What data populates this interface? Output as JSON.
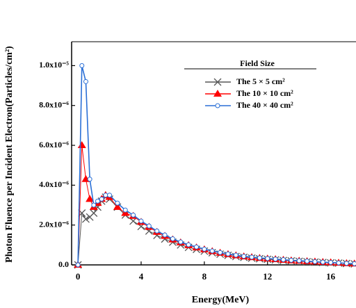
{
  "chart_data": {
    "type": "line",
    "y_label": "Photon Fluence per Incident Electron(Particles/cm²)",
    "x_label": "Energy(MeV)",
    "legend_title": "Field Size",
    "legend": "upper right",
    "x": [
      0,
      0.25,
      0.5,
      0.75,
      1,
      1.25,
      1.5,
      1.75,
      2,
      2.5,
      3,
      3.5,
      4,
      4.5,
      5,
      5.5,
      6,
      6.5,
      7,
      7.5,
      8,
      8.5,
      9,
      9.5,
      10,
      10.5,
      11,
      11.5,
      12,
      12.5,
      13,
      13.5,
      14,
      14.5,
      15,
      15.5,
      16,
      16.5,
      17,
      17.5
    ],
    "series": [
      {
        "name": "The 5 × 5 cm²",
        "color": "#555555",
        "marker": "x",
        "values": [
          0,
          2.6e-06,
          2.3e-06,
          2.4e-06,
          2.6e-06,
          2.9e-06,
          3.2e-06,
          3.4e-06,
          3.3e-06,
          2.9e-06,
          2.5e-06,
          2.2e-06,
          1.93e-06,
          1.7e-06,
          1.48e-06,
          1.3e-06,
          1.14e-06,
          1e-06,
          8.8e-07,
          7.8e-07,
          6.9e-07,
          6.1e-07,
          5.4e-07,
          4.8e-07,
          4.2e-07,
          3.8e-07,
          3.4e-07,
          3.1e-07,
          2.8e-07,
          2.5e-07,
          2.2e-07,
          2e-07,
          1.8e-07,
          1.6e-07,
          1.4e-07,
          1.2e-07,
          1e-07,
          9e-08,
          7e-08,
          5e-08
        ]
      },
      {
        "name": "The 10 × 10 cm²",
        "color": "#ff0000",
        "marker": "triangle",
        "values": [
          0,
          6e-06,
          4.3e-06,
          3.3e-06,
          2.9e-06,
          3.1e-06,
          3.3e-06,
          3.5e-06,
          3.4e-06,
          2.9e-06,
          2.6e-06,
          2.45e-06,
          2.15e-06,
          1.9e-06,
          1.65e-06,
          1.45e-06,
          1.27e-06,
          1.12e-06,
          9.8e-07,
          8.7e-07,
          7.7e-07,
          6.8e-07,
          6e-07,
          5.3e-07,
          4.7e-07,
          4.2e-07,
          3.8e-07,
          3.4e-07,
          3.1e-07,
          2.8e-07,
          2.5e-07,
          2.2e-07,
          2e-07,
          1.8e-07,
          1.6e-07,
          1.4e-07,
          1.2e-07,
          1e-07,
          8e-08,
          6e-08
        ]
      },
      {
        "name": "The 40 × 40 cm²",
        "color": "#2a6fd6",
        "marker": "circle",
        "values": [
          0,
          1e-05,
          9.2e-06,
          4.3e-06,
          3e-06,
          3.2e-06,
          3.3e-06,
          3.5e-06,
          3.5e-06,
          3.1e-06,
          2.75e-06,
          2.5e-06,
          2.2e-06,
          1.95e-06,
          1.7e-06,
          1.5e-06,
          1.31e-06,
          1.15e-06,
          1.01e-06,
          9e-07,
          7.9e-07,
          7e-07,
          6.2e-07,
          5.5e-07,
          4.9e-07,
          4.3e-07,
          3.9e-07,
          3.5e-07,
          3.2e-07,
          2.9e-07,
          2.6e-07,
          2.3e-07,
          2.1e-07,
          1.9e-07,
          1.6e-07,
          1.4e-07,
          1.2e-07,
          1e-07,
          8e-08,
          6e-08
        ]
      }
    ],
    "xlim": [
      -0.4,
      17.6
    ],
    "xticks": [
      0,
      4,
      8,
      12,
      16
    ],
    "ylim": [
      0,
      1.12e-05
    ],
    "yticks": [
      {
        "value": 0,
        "label": "0.0"
      },
      {
        "value": 2e-06,
        "label": "2.0x10⁻⁶"
      },
      {
        "value": 4e-06,
        "label": "4.0x10⁻⁶"
      },
      {
        "value": 6e-06,
        "label": "6.0x10⁻⁶"
      },
      {
        "value": 8e-06,
        "label": "8.0x10⁻⁶"
      },
      {
        "value": 1e-05,
        "label": "1.0x10⁻⁵"
      }
    ],
    "grid": false
  }
}
